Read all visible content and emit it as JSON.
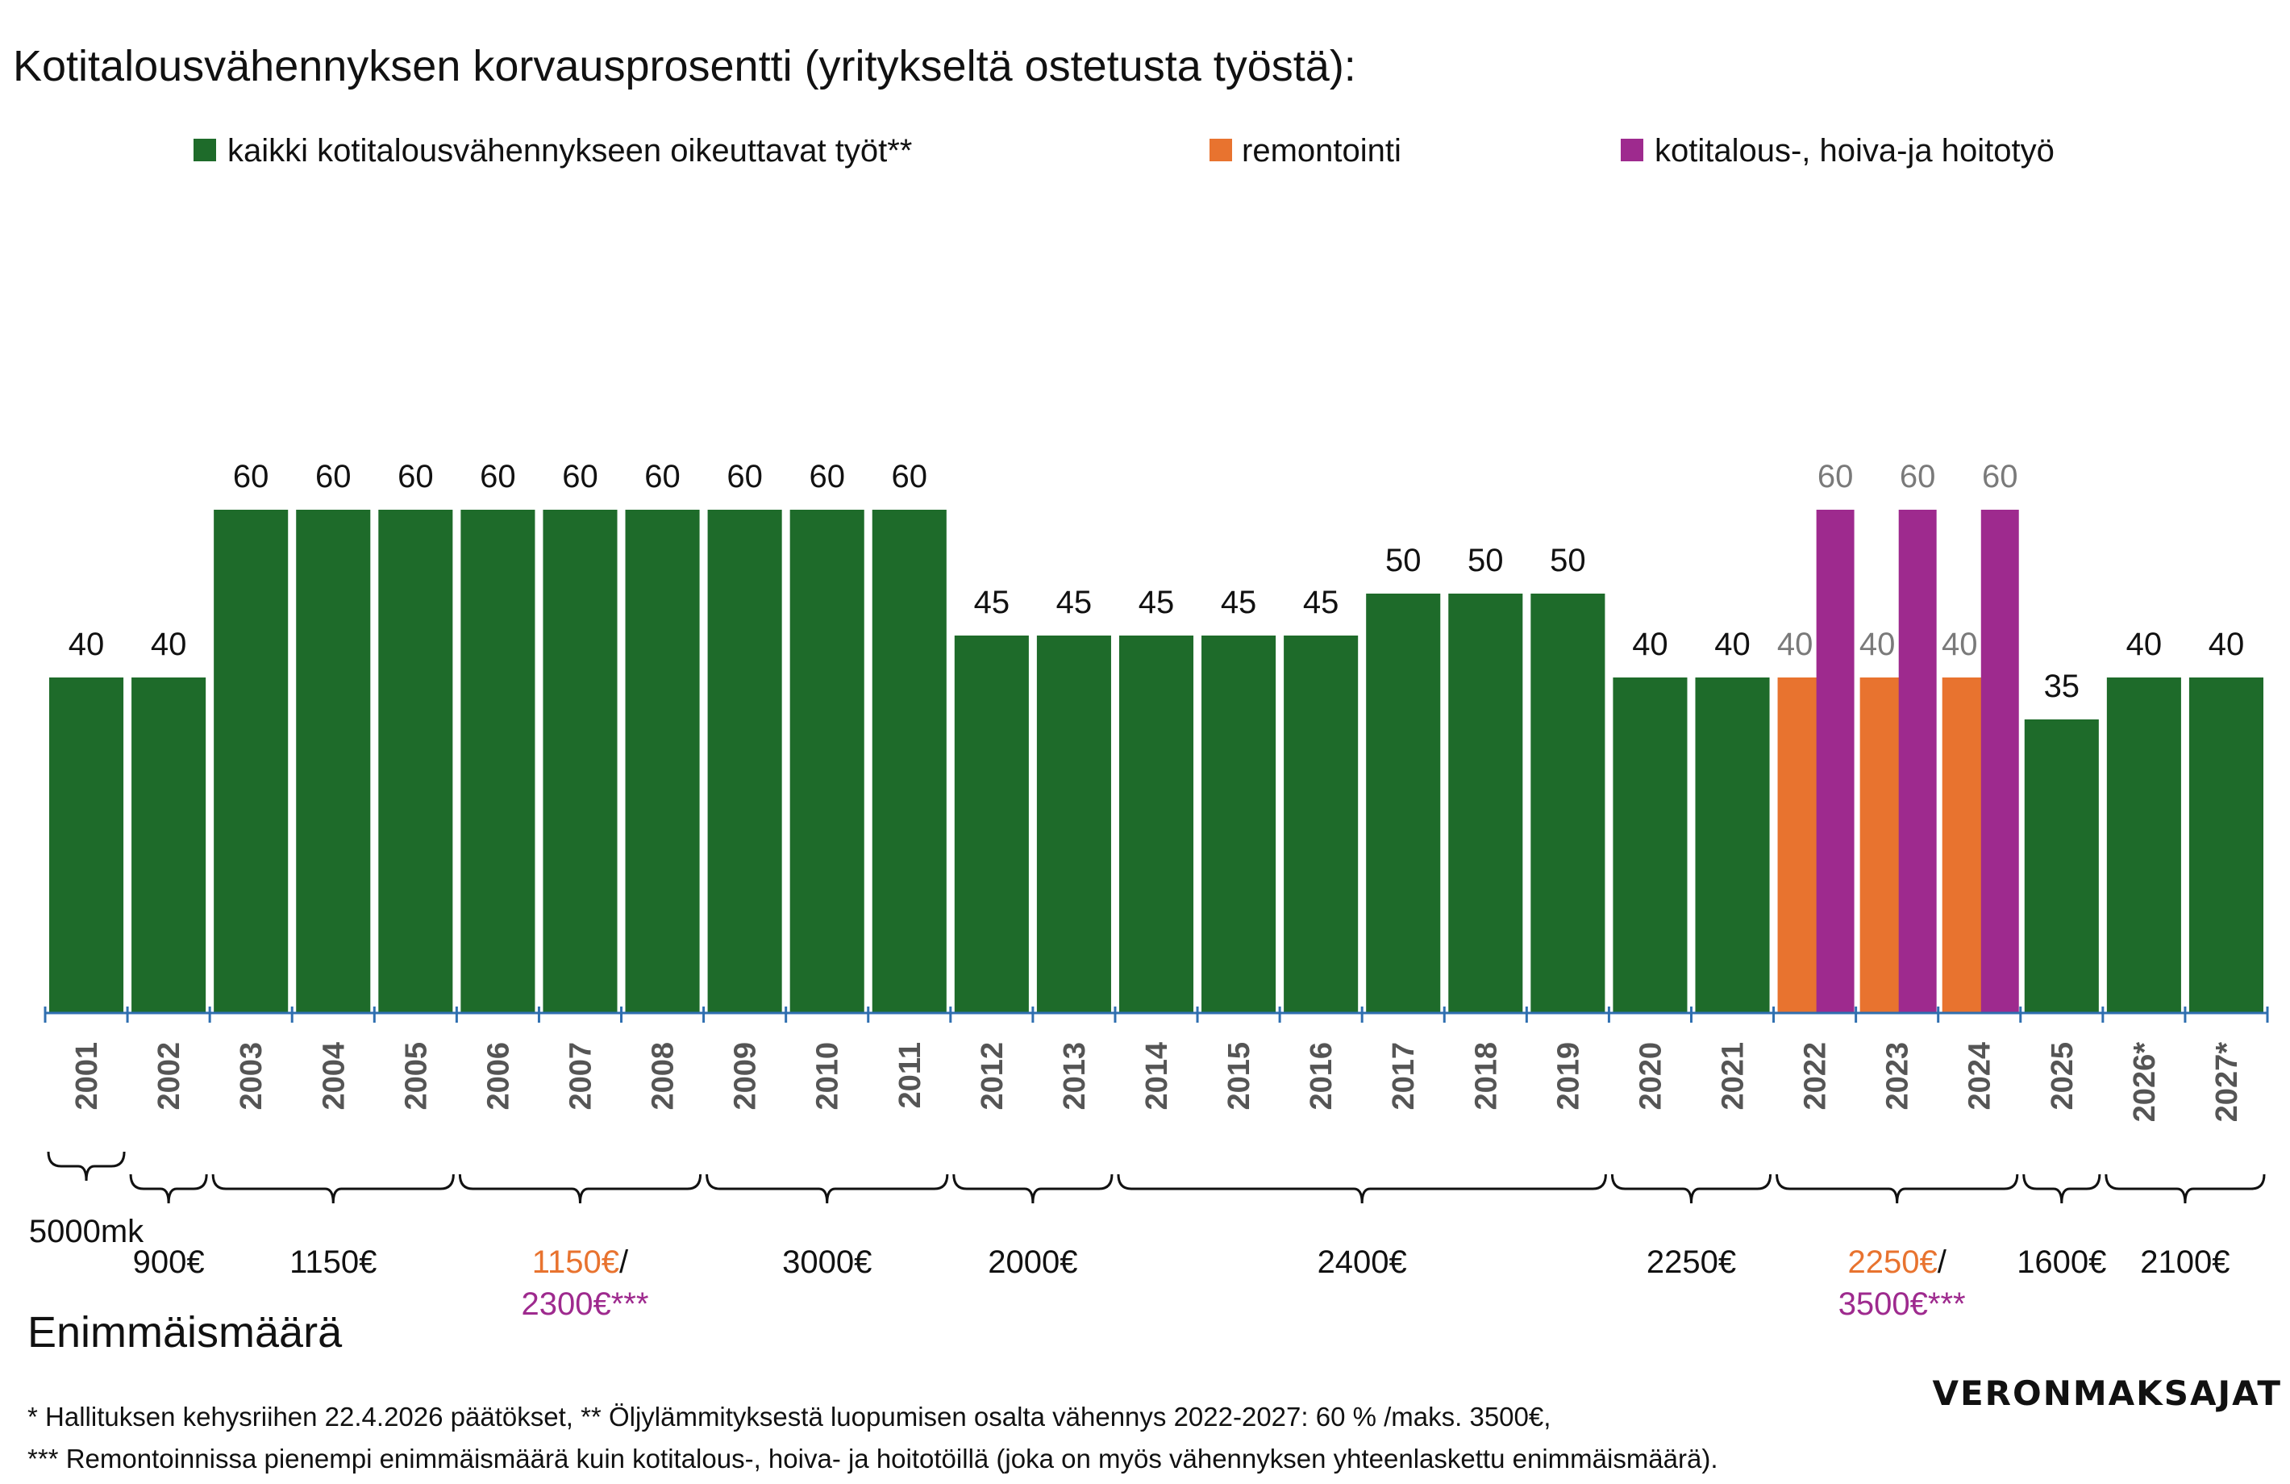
{
  "title": "Kotitalousvähennyksen korvausprosentti (yritykseltä ostetusta työstä):",
  "colors": {
    "all": "#1e6b2a",
    "renovation": "#e8732f",
    "household": "#9e2a8e",
    "axis": "#2f6fb0",
    "tick_text": "#555555"
  },
  "chart_data": {
    "type": "bar",
    "title": "Kotitalousvähennyksen korvausprosentti (yritykseltä ostetusta työstä):",
    "categories": [
      "2001",
      "2002",
      "2003",
      "2004",
      "2005",
      "2006",
      "2007",
      "2008",
      "2009",
      "2010",
      "2011",
      "2012",
      "2013",
      "2014",
      "2015",
      "2016",
      "2017",
      "2018",
      "2019",
      "2020",
      "2021",
      "2022",
      "2023",
      "2024",
      "2025",
      "2026*",
      "2027*"
    ],
    "ylim": [
      0,
      60
    ],
    "grid": false,
    "legend_position": "top",
    "series": [
      {
        "name": "kaikki kotitalousvähennykseen oikeuttavat työt**",
        "color": "#1e6b2a",
        "values": [
          40,
          40,
          60,
          60,
          60,
          60,
          60,
          60,
          60,
          60,
          60,
          45,
          45,
          45,
          45,
          45,
          50,
          50,
          50,
          40,
          40,
          null,
          null,
          null,
          35,
          40,
          40
        ]
      },
      {
        "name": "remontointi",
        "color": "#e8732f",
        "values": [
          null,
          null,
          null,
          null,
          null,
          null,
          null,
          null,
          null,
          null,
          null,
          null,
          null,
          null,
          null,
          null,
          null,
          null,
          null,
          null,
          null,
          40,
          40,
          40,
          null,
          null,
          null
        ]
      },
      {
        "name": "kotitalous-, hoiva-ja hoitotyö",
        "color": "#9e2a8e",
        "values": [
          null,
          null,
          null,
          null,
          null,
          null,
          null,
          null,
          null,
          null,
          null,
          null,
          null,
          null,
          null,
          null,
          null,
          null,
          null,
          null,
          null,
          60,
          60,
          60,
          null,
          null,
          null
        ]
      }
    ]
  },
  "caps": [
    {
      "from": 0,
      "to": 0,
      "parts": [
        {
          "text": "5000mk",
          "color": "#111111"
        }
      ],
      "below": true
    },
    {
      "from": 1,
      "to": 1,
      "parts": [
        {
          "text": "900€",
          "color": "#111111"
        }
      ]
    },
    {
      "from": 2,
      "to": 4,
      "parts": [
        {
          "text": "1150€",
          "color": "#111111"
        }
      ]
    },
    {
      "from": 5,
      "to": 7,
      "parts": [
        {
          "text": "1150€",
          "color": "#e8732f"
        },
        {
          "text": "/",
          "color": "#111111"
        }
      ],
      "second": {
        "text": "2300€***",
        "color": "#9e2a8e"
      }
    },
    {
      "from": 8,
      "to": 10,
      "parts": [
        {
          "text": "3000€",
          "color": "#111111"
        }
      ]
    },
    {
      "from": 11,
      "to": 12,
      "parts": [
        {
          "text": "2000€",
          "color": "#111111"
        }
      ]
    },
    {
      "from": 13,
      "to": 18,
      "parts": [
        {
          "text": "2400€",
          "color": "#111111"
        }
      ]
    },
    {
      "from": 19,
      "to": 20,
      "parts": [
        {
          "text": "2250€",
          "color": "#111111"
        }
      ]
    },
    {
      "from": 21,
      "to": 23,
      "parts": [
        {
          "text": "2250€",
          "color": "#e8732f"
        },
        {
          "text": "/",
          "color": "#111111"
        }
      ],
      "second": {
        "text": "3500€***",
        "color": "#9e2a8e"
      }
    },
    {
      "from": 24,
      "to": 24,
      "parts": [
        {
          "text": "1600€",
          "color": "#111111"
        }
      ]
    },
    {
      "from": 25,
      "to": 26,
      "parts": [
        {
          "text": "2100€",
          "color": "#111111"
        }
      ]
    }
  ],
  "caps_label": "Enimmäismäärä",
  "footnote_1": "* Hallituksen kehysriihen 22.4.2026 päätökset, ** Öljylämmityksestä luopumisen osalta  vähennys 2022-2027: 60 % /maks. 3500€,",
  "footnote_2": "*** Remontoinnissa pienempi enimmäismäärä kuin kotitalous-, hoiva- ja hoitotöillä (joka on myös vähennyksen yhteenlaskettu enimmäismäärä).",
  "brand": "VERONMAKSAJAT"
}
